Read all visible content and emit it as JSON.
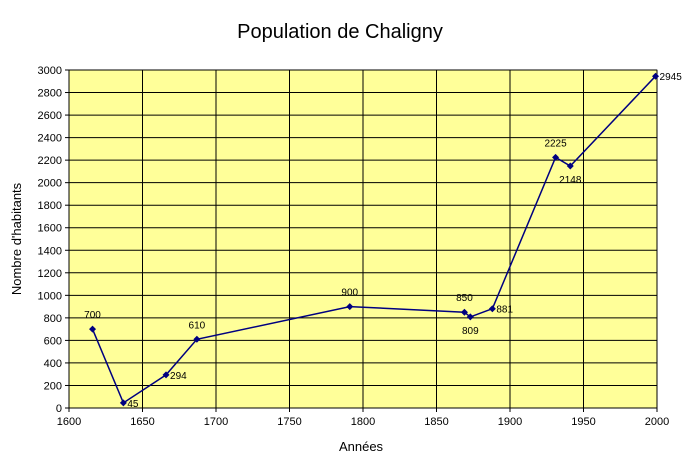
{
  "chart_data": {
    "type": "line",
    "title": "Population de Chaligny",
    "xlabel": "Années",
    "ylabel": "Nombre d'habitants",
    "xlim": [
      1600,
      2000
    ],
    "ylim": [
      0,
      3000
    ],
    "x_ticks": [
      1600,
      1650,
      1700,
      1750,
      1800,
      1850,
      1900,
      1950,
      2000
    ],
    "y_ticks": [
      0,
      200,
      400,
      600,
      800,
      1000,
      1200,
      1400,
      1600,
      1800,
      2000,
      2200,
      2400,
      2600,
      2800,
      3000
    ],
    "grid": true,
    "legend": "none",
    "colors": {
      "plot_background": "#ffff99",
      "line": "#000080",
      "grid": "#000000"
    },
    "series": [
      {
        "points": [
          {
            "x": 1616,
            "y": 700,
            "label": "700",
            "label_pos": "above"
          },
          {
            "x": 1637,
            "y": 45,
            "label": "45",
            "label_pos": "right"
          },
          {
            "x": 1666,
            "y": 294,
            "label": "294",
            "label_pos": "right"
          },
          {
            "x": 1687,
            "y": 610,
            "label": "610",
            "label_pos": "above"
          },
          {
            "x": 1791,
            "y": 900,
            "label": "900",
            "label_pos": "above"
          },
          {
            "x": 1869,
            "y": 850,
            "label": "850",
            "label_pos": "above"
          },
          {
            "x": 1873,
            "y": 809,
            "label": "809",
            "label_pos": "below"
          },
          {
            "x": 1888,
            "y": 881,
            "label": "881",
            "label_pos": "right"
          },
          {
            "x": 1931,
            "y": 2225,
            "label": "2225",
            "label_pos": "above"
          },
          {
            "x": 1941,
            "y": 2148,
            "label": "2148",
            "label_pos": "below"
          },
          {
            "x": 1999,
            "y": 2945,
            "label": "2945",
            "label_pos": "right"
          }
        ]
      }
    ]
  }
}
